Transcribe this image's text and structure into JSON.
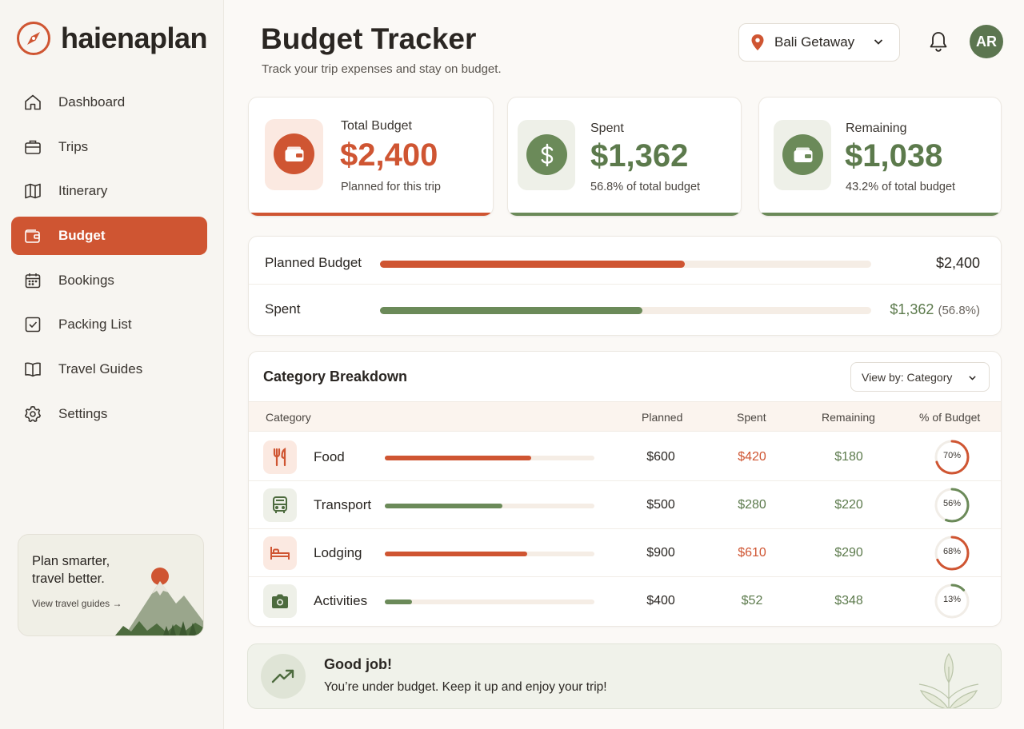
{
  "brand": {
    "name": "haienaplan"
  },
  "sidebar": {
    "items": [
      {
        "label": "Dashboard",
        "icon": "home-icon"
      },
      {
        "label": "Trips",
        "icon": "suitcase-icon"
      },
      {
        "label": "Itinerary",
        "icon": "map-icon"
      },
      {
        "label": "Budget",
        "icon": "wallet-icon",
        "active": true
      },
      {
        "label": "Bookings",
        "icon": "calendar-icon"
      },
      {
        "label": "Packing List",
        "icon": "checkbox-icon"
      },
      {
        "label": "Travel Guides",
        "icon": "book-icon"
      },
      {
        "label": "Settings",
        "icon": "gear-icon"
      }
    ],
    "promo": {
      "title": "Plan smarter, travel better.",
      "link": "View travel guides"
    }
  },
  "header": {
    "title": "Budget Tracker",
    "subtitle": "Track your trip expenses and stay on budget.",
    "trip": "Bali Getaway",
    "avatar": "AR"
  },
  "stats": {
    "total": {
      "label": "Total Budget",
      "value": "$2,400",
      "note": "Planned for this trip"
    },
    "spent": {
      "label": "Spent",
      "value": "$1,362",
      "note": "56.8% of total budget"
    },
    "remaining": {
      "label": "Remaining",
      "value": "$1,038",
      "note": "43.2% of total budget"
    }
  },
  "progress": {
    "planned": {
      "label": "Planned Budget",
      "value": "$2,400",
      "fill": 0.62
    },
    "spent": {
      "label": "Spent",
      "value": "$1,362",
      "pct": "(56.8%)",
      "fill": 0.535
    }
  },
  "categories": {
    "title": "Category Breakdown",
    "view_by": "View by: Category",
    "headers": {
      "category": "Category",
      "planned": "Planned",
      "spent": "Spent",
      "remaining": "Remaining",
      "pct": "% of Budget"
    },
    "rows": [
      {
        "name": "Food",
        "icon": "utensils-icon",
        "planned": "$600",
        "spent": "$420",
        "remaining": "$180",
        "pct": "70%",
        "fill": 0.7,
        "color": "#cf5532",
        "spent_color": "#cf5532"
      },
      {
        "name": "Transport",
        "icon": "bus-icon",
        "planned": "$500",
        "spent": "$280",
        "remaining": "$220",
        "pct": "56%",
        "fill": 0.56,
        "color": "#6b8a59",
        "spent_color": "#5c7a4c"
      },
      {
        "name": "Lodging",
        "icon": "bed-icon",
        "planned": "$900",
        "spent": "$610",
        "remaining": "$290",
        "pct": "68%",
        "fill": 0.68,
        "color": "#cf5532",
        "spent_color": "#cf5532"
      },
      {
        "name": "Activities",
        "icon": "camera-icon",
        "planned": "$400",
        "spent": "$52",
        "remaining": "$348",
        "pct": "13%",
        "fill": 0.13,
        "color": "#6b8a59",
        "spent_color": "#5c7a4c"
      }
    ]
  },
  "banner": {
    "title": "Good job!",
    "text": "You’re under budget. Keep it up and enjoy your trip!"
  },
  "colors": {
    "accent": "#cf5532",
    "green": "#6b8a59",
    "avatar": "#5c7650"
  }
}
